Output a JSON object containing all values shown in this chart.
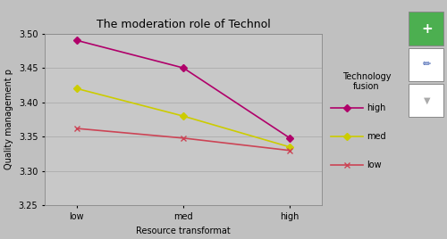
{
  "title": "The moderation role of Technol",
  "xlabel": "Resource transformat",
  "ylabel": "Quality management p",
  "x_labels": [
    "low",
    "med",
    "high"
  ],
  "x_values": [
    0,
    1,
    2
  ],
  "series": [
    {
      "label": "high",
      "color": "#b0006a",
      "values": [
        3.49,
        3.45,
        3.348
      ],
      "marker": "D",
      "markersize": 4
    },
    {
      "label": "med",
      "color": "#cccc00",
      "values": [
        3.42,
        3.38,
        3.335
      ],
      "marker": "D",
      "markersize": 4
    },
    {
      "label": "low",
      "color": "#cc4455",
      "values": [
        3.362,
        3.348,
        3.33
      ],
      "marker": "x",
      "markersize": 4
    }
  ],
  "legend_title": "Technology\nfusion",
  "ylim": [
    3.25,
    3.5
  ],
  "yticks": [
    3.25,
    3.3,
    3.35,
    3.4,
    3.45,
    3.5
  ],
  "plot_bg_color": "#c8c8c8",
  "fig_bg_color": "#c0c0c0",
  "legend_bg_color": "#e0e0e0",
  "right_panel_color": "#d0d0d0",
  "title_fontsize": 9,
  "axis_label_fontsize": 7,
  "tick_fontsize": 7,
  "legend_fontsize": 7,
  "grid_color": "#b0b0b0",
  "figsize": [
    5.0,
    2.68
  ],
  "dpi": 100
}
